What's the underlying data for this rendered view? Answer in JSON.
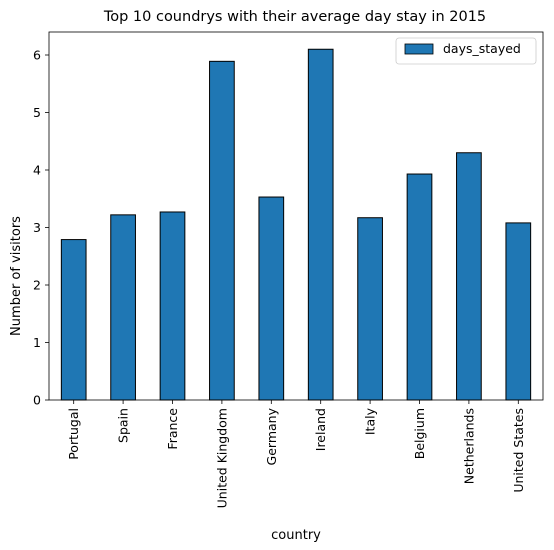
{
  "chart_data": {
    "type": "bar",
    "title": "Top 10 coundrys with their average day stay in 2015",
    "xlabel": "country",
    "ylabel": "Number of visitors",
    "categories": [
      "Portugal",
      "Spain",
      "France",
      "United Kingdom",
      "Germany",
      "Ireland",
      "Italy",
      "Belgium",
      "Netherlands",
      "United States"
    ],
    "series": [
      {
        "name": "days_stayed",
        "color": "#1f77b4",
        "values": [
          2.79,
          3.22,
          3.27,
          5.89,
          3.53,
          6.1,
          3.17,
          3.93,
          4.3,
          3.08
        ]
      }
    ],
    "ylim": [
      0,
      6.4
    ],
    "yticks": [
      0,
      1,
      2,
      3,
      4,
      5,
      6
    ],
    "grid": false,
    "legend_position": "top-right"
  }
}
